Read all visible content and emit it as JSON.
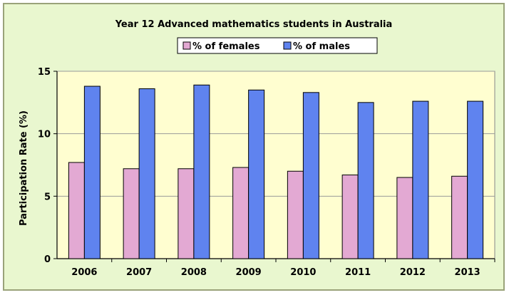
{
  "chart_data": {
    "type": "bar",
    "title": "Year 12 Advanced mathematics students in Australia",
    "xlabel": "",
    "ylabel": "Participation Rate (%)",
    "categories": [
      "2006",
      "2007",
      "2008",
      "2009",
      "2010",
      "2011",
      "2012",
      "2013"
    ],
    "series": [
      {
        "name": "% of females",
        "values": [
          7.7,
          7.2,
          7.2,
          7.3,
          7.0,
          6.7,
          6.5,
          6.6
        ],
        "color": "#e3a9d3"
      },
      {
        "name": "% of males",
        "values": [
          13.8,
          13.6,
          13.9,
          13.5,
          13.3,
          12.5,
          12.6,
          12.6
        ],
        "color": "#5f83ef"
      }
    ],
    "ylim": [
      0,
      15
    ],
    "yticks": [
      0,
      5,
      10,
      15
    ],
    "grid": true,
    "legend_position": "top",
    "plot_background": "#fffed0",
    "frame_background": "#e9f7cf"
  }
}
